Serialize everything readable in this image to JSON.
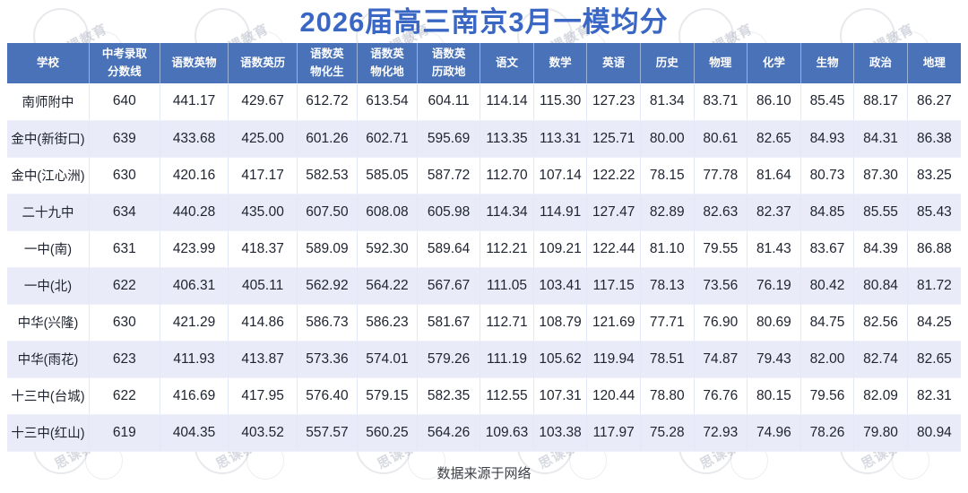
{
  "header": {
    "title": "2026届高三南京3月一模均分"
  },
  "footer": {
    "text": "数据来源于网络"
  },
  "watermark": {
    "text": "思课教育",
    "tiles": 36
  },
  "colors": {
    "title_blue": "#3a66c4",
    "header_bg": "#4a72b8",
    "row_alt": "#e9ecf8"
  },
  "chart_data": {
    "type": "table",
    "title": "2026届高三南京3月一模均分",
    "columns": [
      "学校",
      "中考录取\n分数线",
      "语数英物",
      "语数英历",
      "语数英\n物化生",
      "语数英\n物化地",
      "语数英\n历政地",
      "语文",
      "数学",
      "英语",
      "历史",
      "物理",
      "化学",
      "生物",
      "政治",
      "地理"
    ],
    "rows": [
      [
        "南师附中",
        "640",
        "441.17",
        "429.67",
        "612.72",
        "613.54",
        "604.11",
        "114.14",
        "115.30",
        "127.23",
        "81.34",
        "83.71",
        "86.10",
        "85.45",
        "88.17",
        "86.27"
      ],
      [
        "金中(新街口)",
        "639",
        "433.68",
        "425.00",
        "601.26",
        "602.71",
        "595.69",
        "113.35",
        "113.31",
        "125.71",
        "80.00",
        "80.61",
        "82.65",
        "84.93",
        "84.31",
        "86.38"
      ],
      [
        "金中(江心洲)",
        "630",
        "420.16",
        "417.17",
        "582.53",
        "585.05",
        "587.72",
        "112.70",
        "107.14",
        "122.22",
        "78.15",
        "77.78",
        "81.64",
        "80.73",
        "87.30",
        "83.25"
      ],
      [
        "二十九中",
        "634",
        "440.28",
        "435.00",
        "607.50",
        "608.08",
        "605.98",
        "114.34",
        "114.91",
        "127.47",
        "82.89",
        "82.63",
        "82.37",
        "84.85",
        "85.55",
        "85.43"
      ],
      [
        "一中(南)",
        "631",
        "423.99",
        "418.37",
        "589.09",
        "592.30",
        "589.64",
        "112.21",
        "109.21",
        "122.44",
        "81.10",
        "79.55",
        "81.43",
        "83.67",
        "84.39",
        "86.88"
      ],
      [
        "一中(北)",
        "622",
        "406.31",
        "405.11",
        "562.92",
        "564.22",
        "567.67",
        "111.05",
        "103.41",
        "117.15",
        "78.13",
        "73.56",
        "76.19",
        "80.42",
        "80.84",
        "81.72"
      ],
      [
        "中华(兴隆)",
        "630",
        "421.29",
        "414.86",
        "586.73",
        "586.23",
        "581.67",
        "112.71",
        "108.79",
        "121.69",
        "77.71",
        "76.90",
        "80.69",
        "84.75",
        "82.56",
        "84.25"
      ],
      [
        "中华(雨花)",
        "623",
        "411.93",
        "413.87",
        "573.36",
        "574.01",
        "579.26",
        "111.19",
        "105.62",
        "119.94",
        "78.51",
        "74.87",
        "79.43",
        "82.00",
        "82.74",
        "82.65"
      ],
      [
        "十三中(台城)",
        "622",
        "416.69",
        "417.95",
        "576.40",
        "579.15",
        "582.35",
        "112.55",
        "107.31",
        "120.44",
        "78.80",
        "76.76",
        "80.15",
        "79.56",
        "82.09",
        "82.31"
      ],
      [
        "十三中(红山)",
        "619",
        "404.35",
        "403.52",
        "557.57",
        "560.25",
        "564.26",
        "109.63",
        "103.38",
        "117.97",
        "75.28",
        "72.93",
        "74.96",
        "78.26",
        "79.80",
        "80.94"
      ]
    ]
  }
}
